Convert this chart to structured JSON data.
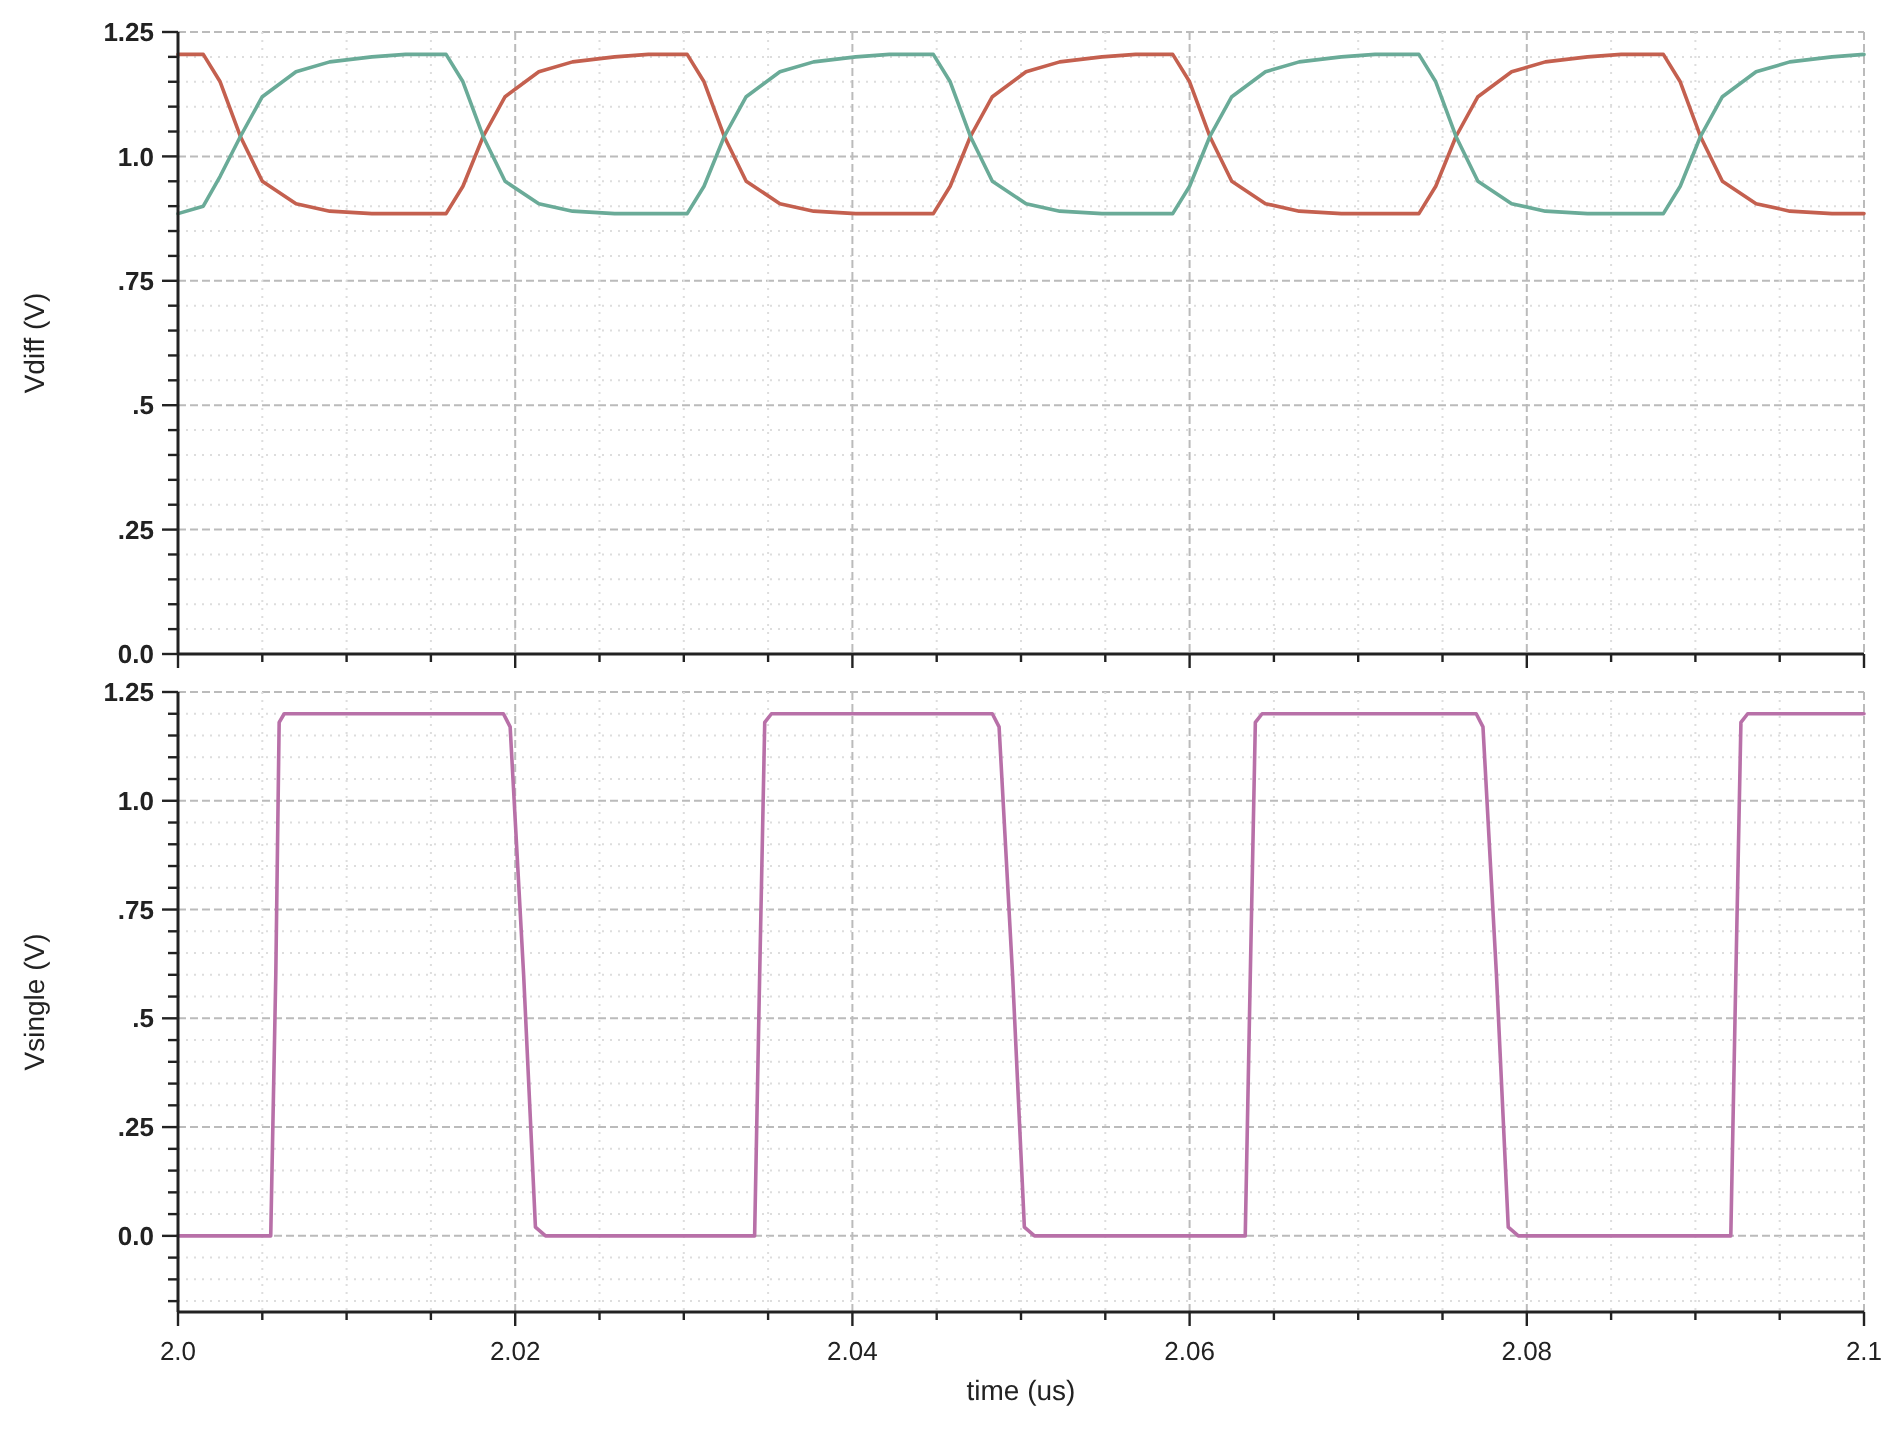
{
  "chart_data": [
    {
      "type": "line",
      "ylabel": "Vdiff (V)",
      "xlim": [
        2.0,
        2.1
      ],
      "ylim": [
        0,
        1.25
      ],
      "tick_labels": "y",
      "grid": true,
      "line_style": "solid",
      "xticks": [
        2.0,
        {
          "value": 2.005,
          "label": null
        },
        {
          "value": 2.01,
          "label": null
        },
        {
          "value": 2.015,
          "label": null
        },
        2.02,
        {
          "value": 2.025,
          "label": null
        },
        {
          "value": 2.03,
          "label": null
        },
        {
          "value": 2.035,
          "label": null
        },
        2.04,
        {
          "value": 2.045,
          "label": null
        },
        {
          "value": 2.05,
          "label": null
        },
        {
          "value": 2.055,
          "label": null
        },
        2.06,
        {
          "value": 2.065,
          "label": null
        },
        {
          "value": 2.07,
          "label": null
        },
        {
          "value": 2.075,
          "label": null
        },
        2.08,
        {
          "value": 2.085,
          "label": null
        },
        {
          "value": 2.09,
          "label": null
        },
        {
          "value": 2.095,
          "label": null
        },
        2.1
      ],
      "yticks": [
        {
          "value": 0,
          "label": "0.0"
        },
        {
          "value": 0.05,
          "label": null
        },
        {
          "value": 0.1,
          "label": null
        },
        {
          "value": 0.15,
          "label": null
        },
        {
          "value": 0.2,
          "label": null
        },
        {
          "value": 0.25,
          "label": ".25"
        },
        {
          "value": 0.3,
          "label": null
        },
        {
          "value": 0.35,
          "label": null
        },
        {
          "value": 0.4,
          "label": null
        },
        {
          "value": 0.45,
          "label": null
        },
        {
          "value": 0.5,
          "label": ".5"
        },
        {
          "value": 0.55,
          "label": null
        },
        {
          "value": 0.6,
          "label": null
        },
        {
          "value": 0.65,
          "label": null
        },
        {
          "value": 0.7,
          "label": null
        },
        {
          "value": 0.75,
          "label": ".75"
        },
        {
          "value": 0.8,
          "label": null
        },
        {
          "value": 0.85,
          "label": null
        },
        {
          "value": 0.9,
          "label": null
        },
        {
          "value": 0.95,
          "label": null
        },
        {
          "value": 1.0,
          "label": "1.0"
        },
        {
          "value": 1.05,
          "label": null
        },
        {
          "value": 1.1,
          "label": null
        },
        {
          "value": 1.15,
          "label": null
        },
        {
          "value": 1.2,
          "label": null
        },
        1.25
      ],
      "series": [
        {
          "color": "#c4604f",
          "x": [
            2.0,
            2.0015,
            2.0025,
            2.0037,
            2.005,
            2.007,
            2.009,
            2.0115,
            2.0159,
            2.0169,
            2.0181,
            2.0194,
            2.0214,
            2.0234,
            2.0259,
            2.0279,
            2.0302,
            2.0312,
            2.0324,
            2.0337,
            2.0357,
            2.0377,
            2.0402,
            2.0448,
            2.0458,
            2.047,
            2.0483,
            2.0503,
            2.0523,
            2.0548,
            2.0568,
            2.059,
            2.06,
            2.0612,
            2.0625,
            2.0645,
            2.0665,
            2.069,
            2.0736,
            2.0746,
            2.0758,
            2.0771,
            2.0791,
            2.0811,
            2.0836,
            2.0856,
            2.0881,
            2.0891,
            2.0903,
            2.0916,
            2.0936,
            2.0956,
            2.0981,
            2.1
          ],
          "values": [
            1.205,
            1.205,
            1.15,
            1.04,
            0.95,
            0.905,
            0.89,
            0.885,
            0.885,
            0.94,
            1.04,
            1.12,
            1.17,
            1.19,
            1.2,
            1.205,
            1.205,
            1.15,
            1.04,
            0.95,
            0.905,
            0.89,
            0.885,
            0.885,
            0.94,
            1.04,
            1.12,
            1.17,
            1.19,
            1.2,
            1.205,
            1.205,
            1.15,
            1.04,
            0.95,
            0.905,
            0.89,
            0.885,
            0.885,
            0.94,
            1.04,
            1.12,
            1.17,
            1.19,
            1.2,
            1.205,
            1.205,
            1.15,
            1.04,
            0.95,
            0.905,
            0.89,
            0.885,
            0.885
          ]
        },
        {
          "color": "#6aab98",
          "x": [
            2.0,
            2.0015,
            2.0025,
            2.0037,
            2.005,
            2.007,
            2.009,
            2.0115,
            2.0135,
            2.0159,
            2.0169,
            2.0181,
            2.0194,
            2.0214,
            2.0234,
            2.0259,
            2.0302,
            2.0312,
            2.0324,
            2.0337,
            2.0357,
            2.0377,
            2.0402,
            2.0422,
            2.0448,
            2.0458,
            2.047,
            2.0483,
            2.0503,
            2.0523,
            2.0548,
            2.059,
            2.06,
            2.0612,
            2.0625,
            2.0645,
            2.0665,
            2.069,
            2.071,
            2.0736,
            2.0746,
            2.0758,
            2.0771,
            2.0791,
            2.0811,
            2.0836,
            2.0881,
            2.0891,
            2.0903,
            2.0916,
            2.0936,
            2.0956,
            2.0981,
            2.1
          ],
          "values": [
            0.885,
            0.9,
            0.96,
            1.04,
            1.12,
            1.17,
            1.19,
            1.2,
            1.205,
            1.205,
            1.15,
            1.04,
            0.95,
            0.905,
            0.89,
            0.885,
            0.885,
            0.94,
            1.04,
            1.12,
            1.17,
            1.19,
            1.2,
            1.205,
            1.205,
            1.15,
            1.04,
            0.95,
            0.905,
            0.89,
            0.885,
            0.885,
            0.94,
            1.04,
            1.12,
            1.17,
            1.19,
            1.2,
            1.205,
            1.205,
            1.15,
            1.04,
            0.95,
            0.905,
            0.89,
            0.885,
            0.885,
            0.94,
            1.04,
            1.12,
            1.17,
            1.19,
            1.2,
            1.205
          ]
        }
      ]
    },
    {
      "type": "line",
      "ylabel": "Vsingle (V)",
      "xlabel": "time (us)",
      "xlim": [
        2.0,
        2.1
      ],
      "ylim": [
        -0.175,
        1.25
      ],
      "grid": true,
      "line_style": "solid",
      "xticks": [
        {
          "value": 2.0,
          "label": "2.0"
        },
        {
          "value": 2.005,
          "label": null
        },
        {
          "value": 2.01,
          "label": null
        },
        {
          "value": 2.015,
          "label": null
        },
        2.02,
        {
          "value": 2.025,
          "label": null
        },
        {
          "value": 2.03,
          "label": null
        },
        {
          "value": 2.035,
          "label": null
        },
        2.04,
        {
          "value": 2.045,
          "label": null
        },
        {
          "value": 2.05,
          "label": null
        },
        {
          "value": 2.055,
          "label": null
        },
        2.06,
        {
          "value": 2.065,
          "label": null
        },
        {
          "value": 2.07,
          "label": null
        },
        {
          "value": 2.075,
          "label": null
        },
        2.08,
        {
          "value": 2.085,
          "label": null
        },
        {
          "value": 2.09,
          "label": null
        },
        {
          "value": 2.095,
          "label": null
        },
        2.1
      ],
      "yticks": [
        {
          "value": -0.15,
          "label": null
        },
        {
          "value": -0.1,
          "label": null
        },
        {
          "value": -0.05,
          "label": null
        },
        {
          "value": 0,
          "label": "0.0"
        },
        {
          "value": 0.05,
          "label": null
        },
        {
          "value": 0.1,
          "label": null
        },
        {
          "value": 0.15,
          "label": null
        },
        {
          "value": 0.2,
          "label": null
        },
        {
          "value": 0.25,
          "label": ".25"
        },
        {
          "value": 0.3,
          "label": null
        },
        {
          "value": 0.35,
          "label": null
        },
        {
          "value": 0.4,
          "label": null
        },
        {
          "value": 0.45,
          "label": null
        },
        {
          "value": 0.5,
          "label": ".5"
        },
        {
          "value": 0.55,
          "label": null
        },
        {
          "value": 0.6,
          "label": null
        },
        {
          "value": 0.65,
          "label": null
        },
        {
          "value": 0.7,
          "label": null
        },
        {
          "value": 0.75,
          "label": ".75"
        },
        {
          "value": 0.8,
          "label": null
        },
        {
          "value": 0.85,
          "label": null
        },
        {
          "value": 0.9,
          "label": null
        },
        {
          "value": 0.95,
          "label": null
        },
        {
          "value": 1.0,
          "label": "1.0"
        },
        {
          "value": 1.05,
          "label": null
        },
        {
          "value": 1.1,
          "label": null
        },
        {
          "value": 1.15,
          "label": null
        },
        {
          "value": 1.2,
          "label": null
        },
        1.25
      ],
      "series": [
        {
          "color": "#b870a8",
          "x": [
            2.0,
            2.0055,
            2.0058,
            2.006,
            2.0063,
            2.0193,
            2.0197,
            2.0205,
            2.0212,
            2.0218,
            2.0342,
            2.0345,
            2.0348,
            2.0352,
            2.0483,
            2.0487,
            2.0495,
            2.0502,
            2.0508,
            2.0633,
            2.0636,
            2.0639,
            2.0643,
            2.077,
            2.0774,
            2.0782,
            2.0789,
            2.0795,
            2.0921,
            2.0924,
            2.0927,
            2.0931,
            2.1
          ],
          "values": [
            0,
            0,
            0.6,
            1.18,
            1.2,
            1.2,
            1.17,
            0.6,
            0.02,
            0,
            0,
            0.6,
            1.18,
            1.2,
            1.2,
            1.17,
            0.6,
            0.02,
            0,
            0,
            0.6,
            1.18,
            1.2,
            1.2,
            1.17,
            0.6,
            0.02,
            0,
            0,
            0.6,
            1.18,
            1.2,
            1.2
          ]
        }
      ]
    }
  ]
}
